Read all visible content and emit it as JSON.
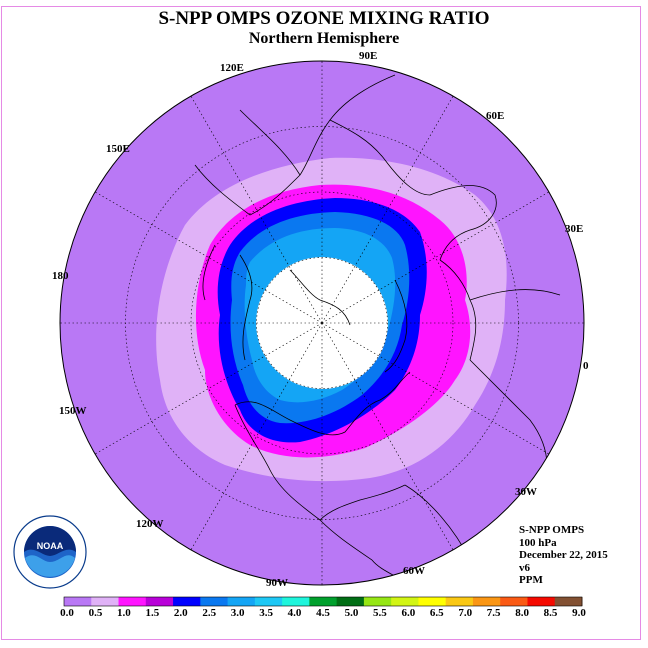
{
  "title": "S-NPP OMPS OZONE MIXING RATIO",
  "subtitle": "Northern Hemisphere",
  "longitude_labels": [
    "90E",
    "60E",
    "30E",
    "0",
    "30W",
    "60W",
    "90W",
    "120W",
    "150W",
    "180",
    "150E",
    "120E"
  ],
  "info": {
    "instrument": "S-NPP OMPS",
    "level": "100 hPa",
    "date": "December 22, 2015",
    "version": "v6",
    "units": "PPM"
  },
  "logo_text": "NOAA",
  "colorbar": {
    "labels": [
      "0.0",
      "0.5",
      "1.0",
      "1.5",
      "2.0",
      "2.5",
      "3.0",
      "3.5",
      "4.0",
      "4.5",
      "5.0",
      "5.5",
      "6.0",
      "6.5",
      "7.0",
      "7.5",
      "8.0",
      "8.5",
      "9.0"
    ],
    "colors": [
      "#b978f5",
      "#e0b2f7",
      "#ff14ff",
      "#b800d8",
      "#0000ff",
      "#0a78f0",
      "#14a5f5",
      "#1ec8f5",
      "#1ef5dc",
      "#00a02d",
      "#006e14",
      "#96e614",
      "#d2f514",
      "#ffff00",
      "#fac814",
      "#fa9614",
      "#fa5a14",
      "#f50a00",
      "#825032"
    ]
  },
  "map_colors": {
    "background": "#b978f5",
    "ring_lavender": "#e0b2f7",
    "ring_magenta": "#ff14ff",
    "ring_blue": "#0000ff",
    "ring_mid": "#0a78f0",
    "ring_light": "#14a5f5",
    "polar_cap": "#ffffff"
  }
}
